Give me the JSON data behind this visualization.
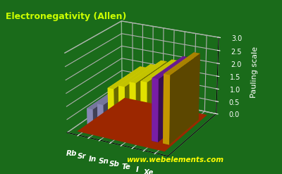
{
  "title": "Electronegativity (Allen)",
  "ylabel": "Pauling scale",
  "website": "www.webelements.com",
  "elements": [
    "Rb",
    "Sr",
    "In",
    "Sn",
    "Sb",
    "Te",
    "I",
    "Xe"
  ],
  "values": [
    0.706,
    0.963,
    1.656,
    1.824,
    2.046,
    2.158,
    2.359,
    2.582
  ],
  "bar_colors": [
    "#9999cc",
    "#9999cc",
    "#ffff00",
    "#ffff00",
    "#ffff00",
    "#ffff00",
    "#8822bb",
    "#ddaa00"
  ],
  "background_color": "#1a6b1a",
  "floor_color": "#cc3300",
  "title_color": "#ccff00",
  "axis_color": "#ffffff",
  "ylabel_color": "#ffffff",
  "tick_color": "#ffffff",
  "website_color": "#ffff00",
  "ylim": [
    0.0,
    3.0
  ],
  "yticks": [
    0.0,
    0.5,
    1.0,
    1.5,
    2.0,
    2.5,
    3.0
  ],
  "elev": 22,
  "azim": -62
}
